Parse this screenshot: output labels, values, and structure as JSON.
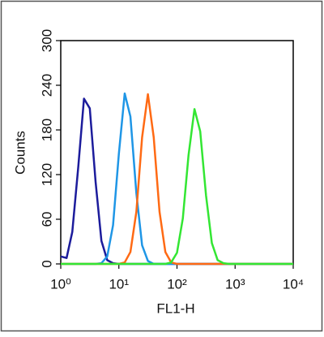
{
  "chart_data": {
    "type": "line",
    "xlabel": "FL1-H",
    "ylabel": "Counts",
    "xscale": "log",
    "x": [
      1,
      1.26,
      1.58,
      2,
      2.51,
      3.16,
      3.98,
      5.01,
      6.31,
      7.94,
      10,
      12.6,
      15.8,
      20,
      25.1,
      31.6,
      39.8,
      50.1,
      63.1,
      79.4,
      100,
      126,
      158,
      200,
      251,
      316,
      398,
      501,
      631,
      794,
      1000,
      1259,
      1585,
      1995,
      2512,
      3162,
      3981,
      5012,
      6310,
      7943,
      10000
    ],
    "series": [
      {
        "color": "#1c1c9c",
        "values": [
          10,
          8,
          43,
          130,
          222,
          209,
          110,
          31,
          5,
          1,
          0,
          0,
          0,
          0,
          0,
          0,
          0,
          0,
          0,
          0,
          0,
          0,
          0,
          0,
          0,
          0,
          0,
          0,
          0,
          0,
          0,
          0,
          0,
          0,
          0,
          0,
          0,
          0,
          0,
          0,
          0
        ]
      },
      {
        "color": "#1f96e6",
        "values": [
          0,
          0,
          0,
          0,
          0,
          0,
          0,
          1,
          10,
          52,
          148,
          229,
          198,
          95,
          25,
          4,
          0,
          0,
          0,
          0,
          0,
          0,
          0,
          0,
          0,
          0,
          0,
          0,
          0,
          0,
          0,
          0,
          0,
          0,
          0,
          0,
          0,
          0,
          0,
          0,
          0
        ]
      },
      {
        "color": "#ff6a14",
        "values": [
          0,
          0,
          0,
          0,
          0,
          0,
          0,
          0,
          0,
          0,
          0,
          2,
          16,
          70,
          170,
          228,
          170,
          70,
          16,
          2,
          0,
          0,
          0,
          0,
          0,
          0,
          0,
          0,
          0,
          0,
          0,
          0,
          0,
          0,
          0,
          0,
          0,
          0,
          0,
          0,
          0
        ]
      },
      {
        "color": "#33e633",
        "values": [
          0,
          0,
          0,
          0,
          0,
          0,
          0,
          0,
          0,
          0,
          0,
          0,
          0,
          0,
          0,
          0,
          0,
          0,
          0,
          2,
          15,
          61,
          146,
          208,
          178,
          92,
          28,
          5,
          1,
          0,
          0,
          0,
          0,
          0,
          0,
          0,
          0,
          0,
          0,
          0,
          0
        ]
      }
    ],
    "xlim": [
      1,
      10000
    ],
    "xticks": [
      {
        "value": 1,
        "label": "10⁰"
      },
      {
        "value": 10,
        "label": "10¹"
      },
      {
        "value": 100,
        "label": "10²"
      },
      {
        "value": 1000,
        "label": "10³"
      },
      {
        "value": 10000,
        "label": "10⁴"
      }
    ],
    "ylim": [
      0,
      300
    ],
    "yticks": [
      0,
      60,
      120,
      180,
      240,
      300
    ],
    "grid": false
  }
}
